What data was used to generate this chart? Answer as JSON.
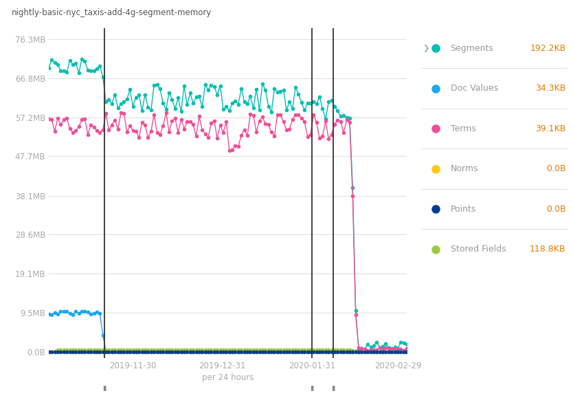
{
  "title": "nightly-basic-nyc_taxis-add-4g-segment-memory",
  "xlabel": "per 24 hours",
  "yticks_labels": [
    "0.0B",
    "9.5MB",
    "19.1MB",
    "28.6MB",
    "38.1MB",
    "47.7MB",
    "57.2MB",
    "66.8MB",
    "76.3MB"
  ],
  "yticks_values": [
    0,
    9500000,
    19100000,
    28600000,
    38100000,
    47700000,
    57200000,
    66800000,
    76300000
  ],
  "xtick_labels": [
    "2019-11-30",
    "2019-12-31",
    "2020-01-31",
    "2020-02-29"
  ],
  "xtick_positions": [
    0.235,
    0.485,
    0.735,
    0.975
  ],
  "vlines": [
    0.155,
    0.735,
    0.795
  ],
  "colors": {
    "segments": "#00bfb3",
    "doc_values": "#1ba8f5",
    "terms": "#f04e98",
    "norms": "#fec514",
    "points": "#003f8f",
    "stored_fields": "#9fc93d"
  },
  "legend": {
    "entries": [
      "Segments",
      "Doc Values",
      "Terms",
      "Norms",
      "Points",
      "Stored Fields"
    ],
    "values": [
      "192.2KB",
      "34.3KB",
      "39.1KB",
      "0.0B",
      "0.0B",
      "118.8KB"
    ],
    "colors": [
      "#00bfb3",
      "#1ba8f5",
      "#f04e98",
      "#fec514",
      "#003f8f",
      "#9fc93d"
    ]
  },
  "background_color": "#ffffff",
  "grid_color": "#dddddd",
  "spine_color": "#cccccc",
  "tick_color": "#aaaaaa",
  "legend_text_color": "#999999",
  "legend_value_color": "#e07c00",
  "title_color": "#555555",
  "vline_color": "#333333"
}
